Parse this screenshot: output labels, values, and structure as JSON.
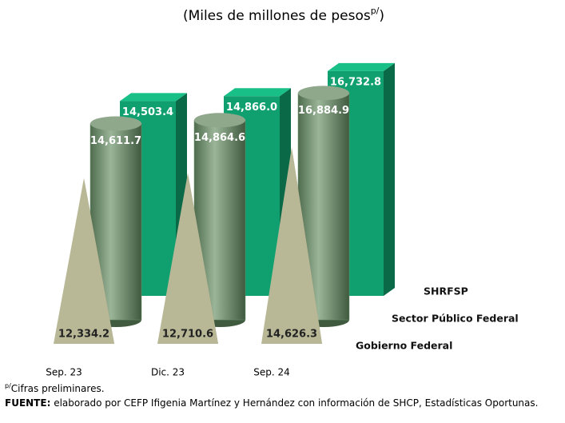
{
  "chart_data": {
    "type": "bar3d",
    "title": "(Miles de millones de pesos",
    "title_sup": "p/",
    "title_end": ")",
    "categories": [
      "Sep. 23",
      "Dic. 23",
      "Sep. 24"
    ],
    "series": [
      {
        "name": "SHRFSP",
        "color": "#10a070",
        "shape": "box",
        "values": [
          14503.4,
          14866.0,
          16732.8
        ],
        "value_labels": [
          "14,503.4",
          "14,866.0",
          "16,732.8"
        ]
      },
      {
        "name": "Sector Público Federal",
        "color": "#6f8f6c",
        "shape": "cylinder",
        "values": [
          14611.7,
          14864.6,
          16884.9
        ],
        "value_labels": [
          "14,611.7",
          "14,864.6",
          "16,884.9"
        ]
      },
      {
        "name": "Gobierno Federal",
        "color": "#b8b896",
        "shape": "pyramid",
        "values": [
          12334.2,
          12710.6,
          14626.3
        ],
        "value_labels": [
          "12,334.2",
          "12,710.6",
          "14,626.3"
        ]
      }
    ],
    "note_sup": "p/",
    "note": "Cifras preliminares.",
    "source_label": "FUENTE:",
    "source": " elaborado por CEFP Ifigenia Martínez y Hernández con información de SHCP, Estadísticas Oportunas."
  }
}
